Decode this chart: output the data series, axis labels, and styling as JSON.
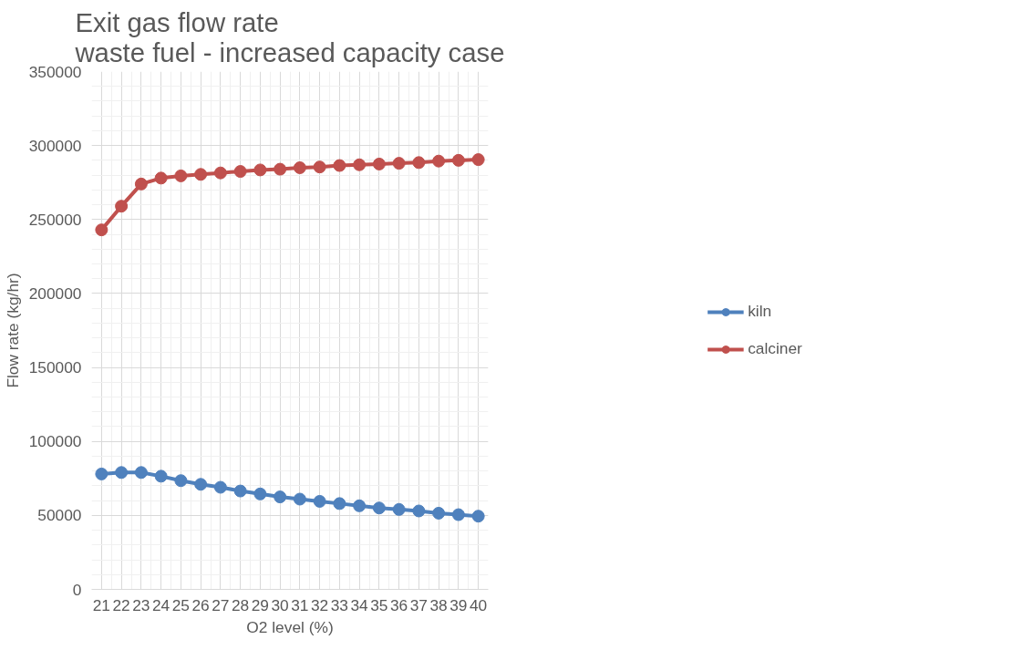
{
  "chart_data": {
    "type": "line",
    "title": "Exit gas flow rate\nwaste fuel - increased capacity case",
    "xlabel": "O2 level (%)",
    "ylabel": "Flow rate (kg/hr)",
    "x": [
      21,
      22,
      23,
      24,
      25,
      26,
      27,
      28,
      29,
      30,
      31,
      32,
      33,
      34,
      35,
      36,
      37,
      38,
      39,
      40
    ],
    "series": [
      {
        "name": "kiln",
        "color": "#4f81bd",
        "values": [
          78000,
          79000,
          79000,
          76500,
          73500,
          71000,
          69000,
          66500,
          64500,
          62500,
          61000,
          59500,
          58000,
          56500,
          55000,
          54000,
          53000,
          51500,
          50500,
          49500
        ]
      },
      {
        "name": "calciner",
        "color": "#c0504d",
        "values": [
          243000,
          259000,
          274000,
          278000,
          279500,
          280500,
          281500,
          282500,
          283500,
          284000,
          285000,
          285500,
          286500,
          287000,
          287500,
          288000,
          288500,
          289500,
          290000,
          290500
        ]
      }
    ],
    "xlim": [
      20.5,
      40.5
    ],
    "xticks": [
      21,
      22,
      23,
      24,
      25,
      26,
      27,
      28,
      29,
      30,
      31,
      32,
      33,
      34,
      35,
      36,
      37,
      38,
      39,
      40
    ],
    "ylim": [
      0,
      350000
    ],
    "yticks": [
      0,
      50000,
      100000,
      150000,
      200000,
      250000,
      300000,
      350000
    ],
    "grid": true,
    "legend": "right",
    "marker": "circle",
    "line_style": "solid"
  }
}
